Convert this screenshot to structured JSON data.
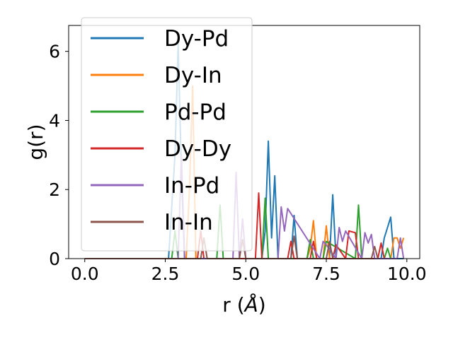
{
  "chart_data": {
    "type": "line",
    "xlabel": "r (Å)",
    "xlabel_parts": [
      "r (",
      "Å",
      ")"
    ],
    "ylabel": "g(r)",
    "xlim": [
      -0.5,
      10.4
    ],
    "ylim": [
      0,
      6.75
    ],
    "xticks": [
      0.0,
      2.5,
      5.0,
      7.5,
      10.0
    ],
    "xtick_labels": [
      "0.0",
      "2.5",
      "5.0",
      "7.5",
      "10.0"
    ],
    "yticks": [
      0,
      2,
      4,
      6
    ],
    "ytick_labels": [
      "0",
      "2",
      "4",
      "6"
    ],
    "grid": false,
    "legend_position": "top-left",
    "series": [
      {
        "name": "Dy-Pd",
        "color": "#1f77b4",
        "x": [
          0.0,
          2.6,
          2.8,
          2.9,
          3.0,
          3.1,
          3.3,
          5.5,
          5.6,
          5.7,
          5.8,
          5.9,
          6.0,
          6.4,
          6.5,
          6.6,
          7.6,
          7.7,
          7.8,
          9.2,
          9.3,
          9.4,
          9.5,
          9.6,
          9.9
        ],
        "y": [
          0,
          0,
          3.0,
          6.2,
          2.5,
          0,
          0,
          0,
          0.8,
          3.4,
          0.6,
          2.4,
          0,
          0,
          1.25,
          0,
          0,
          1.85,
          0,
          0,
          0.6,
          0.9,
          1.2,
          0,
          0
        ]
      },
      {
        "name": "Dy-In",
        "color": "#ff7f0e",
        "x": [
          0.0,
          3.15,
          3.25,
          3.35,
          3.45,
          6.9,
          7.0,
          7.1,
          7.2,
          7.4,
          7.5,
          7.6,
          9.5,
          9.6,
          9.7,
          9.8,
          9.9
        ],
        "y": [
          0,
          0,
          2.0,
          5.0,
          0,
          0,
          0.3,
          1.1,
          0,
          0,
          0.95,
          0,
          0,
          0.6,
          0.6,
          0.3,
          0.6
        ]
      },
      {
        "name": "Pd-Pd",
        "color": "#2ca02c",
        "x": [
          0.0,
          2.7,
          2.8,
          2.9,
          4.1,
          4.2,
          4.3,
          5.5,
          5.6,
          5.7,
          6.9,
          7.0,
          7.1,
          7.4,
          7.5,
          8.4,
          8.5,
          8.6,
          9.3,
          9.4,
          9.5
        ],
        "y": [
          0,
          0,
          0.8,
          0,
          0,
          1.55,
          0,
          0,
          1.75,
          0,
          0,
          0.55,
          0,
          0,
          0.5,
          0,
          1.55,
          0,
          0,
          0.3,
          0
        ],
        "hidden_under_legend": true
      },
      {
        "name": "Dy-Dy",
        "color": "#d62728",
        "x": [
          0.0,
          3.5,
          3.6,
          3.7,
          5.3,
          5.4,
          5.5,
          6.3,
          6.4,
          6.5,
          7.0,
          7.1,
          7.2,
          7.7,
          7.8,
          8.1,
          8.2,
          8.4,
          8.5,
          9.1,
          9.2,
          9.3
        ],
        "y": [
          0,
          0,
          0.8,
          0,
          0,
          1.9,
          0,
          0,
          0.5,
          0,
          0,
          0.5,
          0,
          0,
          0.4,
          0,
          0.8,
          0.75,
          0,
          0,
          0.45,
          0
        ]
      },
      {
        "name": "In-Pd",
        "color": "#9467bd",
        "x": [
          0.0,
          2.9,
          3.0,
          3.1,
          4.6,
          4.7,
          4.8,
          4.9,
          5.0,
          6.0,
          6.1,
          6.2,
          6.3,
          7.3,
          7.4,
          7.5,
          7.8,
          7.9,
          8.0,
          8.1,
          8.6,
          8.7,
          8.8,
          8.9,
          9.0,
          9.7,
          9.8,
          9.9
        ],
        "y": [
          0,
          0,
          3.0,
          0,
          0,
          2.5,
          0,
          1.15,
          0,
          0,
          1.5,
          0.8,
          1.45,
          0,
          0.5,
          0.4,
          0,
          0.9,
          0.5,
          0.8,
          0,
          0.75,
          0.45,
          0.7,
          0,
          0,
          0.6,
          0
        ]
      },
      {
        "name": "In-In",
        "color": "#8c564b",
        "x": [
          0.0,
          3.6,
          3.7,
          3.8,
          4.8,
          4.9,
          5.0,
          6.4,
          6.5,
          6.6,
          7.5,
          7.6,
          7.7,
          8.9,
          9.0,
          9.1
        ],
        "y": [
          0,
          0,
          0.6,
          0,
          0,
          0.55,
          0,
          0,
          0.65,
          0,
          0,
          0.5,
          0,
          0,
          0.35,
          0
        ]
      }
    ]
  }
}
